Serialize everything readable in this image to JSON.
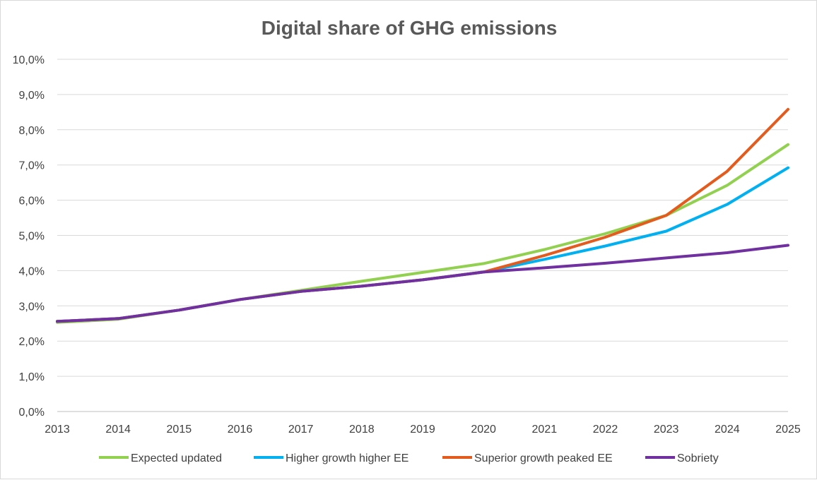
{
  "chart_data": {
    "type": "line",
    "title": "Digital share of GHG emissions",
    "xlabel": "",
    "ylabel": "",
    "categories": [
      "2013",
      "2014",
      "2015",
      "2016",
      "2017",
      "2018",
      "2019",
      "2020",
      "2021",
      "2022",
      "2023",
      "2024",
      "2025"
    ],
    "ylim": [
      0,
      10
    ],
    "yticks": [
      0,
      1,
      2,
      3,
      4,
      5,
      6,
      7,
      8,
      9,
      10
    ],
    "ytick_labels": [
      "0,0%",
      "1,0%",
      "2,0%",
      "3,0%",
      "4,0%",
      "5,0%",
      "6,0%",
      "7,0%",
      "8,0%",
      "9,0%",
      "10,0%"
    ],
    "grid": true,
    "legend_position": "bottom",
    "series": [
      {
        "name": "Expected updated",
        "color": "#92d050",
        "values": [
          2.53,
          2.62,
          2.88,
          3.18,
          3.44,
          3.7,
          3.95,
          4.2,
          4.6,
          5.05,
          5.57,
          6.42,
          7.58
        ]
      },
      {
        "name": "Higher growth higher EE",
        "color": "#00b0f0",
        "values": [
          2.56,
          2.64,
          2.88,
          3.18,
          3.41,
          3.56,
          3.74,
          3.96,
          4.32,
          4.7,
          5.12,
          5.88,
          6.92
        ]
      },
      {
        "name": "Superior growth peaked EE",
        "color": "#e35b1d",
        "values": [
          2.56,
          2.64,
          2.88,
          3.18,
          3.41,
          3.56,
          3.74,
          3.96,
          4.43,
          4.95,
          5.57,
          6.82,
          8.58
        ]
      },
      {
        "name": "Sobriety",
        "color": "#7030a0",
        "values": [
          2.56,
          2.64,
          2.88,
          3.18,
          3.41,
          3.56,
          3.74,
          3.96,
          4.08,
          4.21,
          4.36,
          4.51,
          4.72
        ]
      }
    ]
  }
}
